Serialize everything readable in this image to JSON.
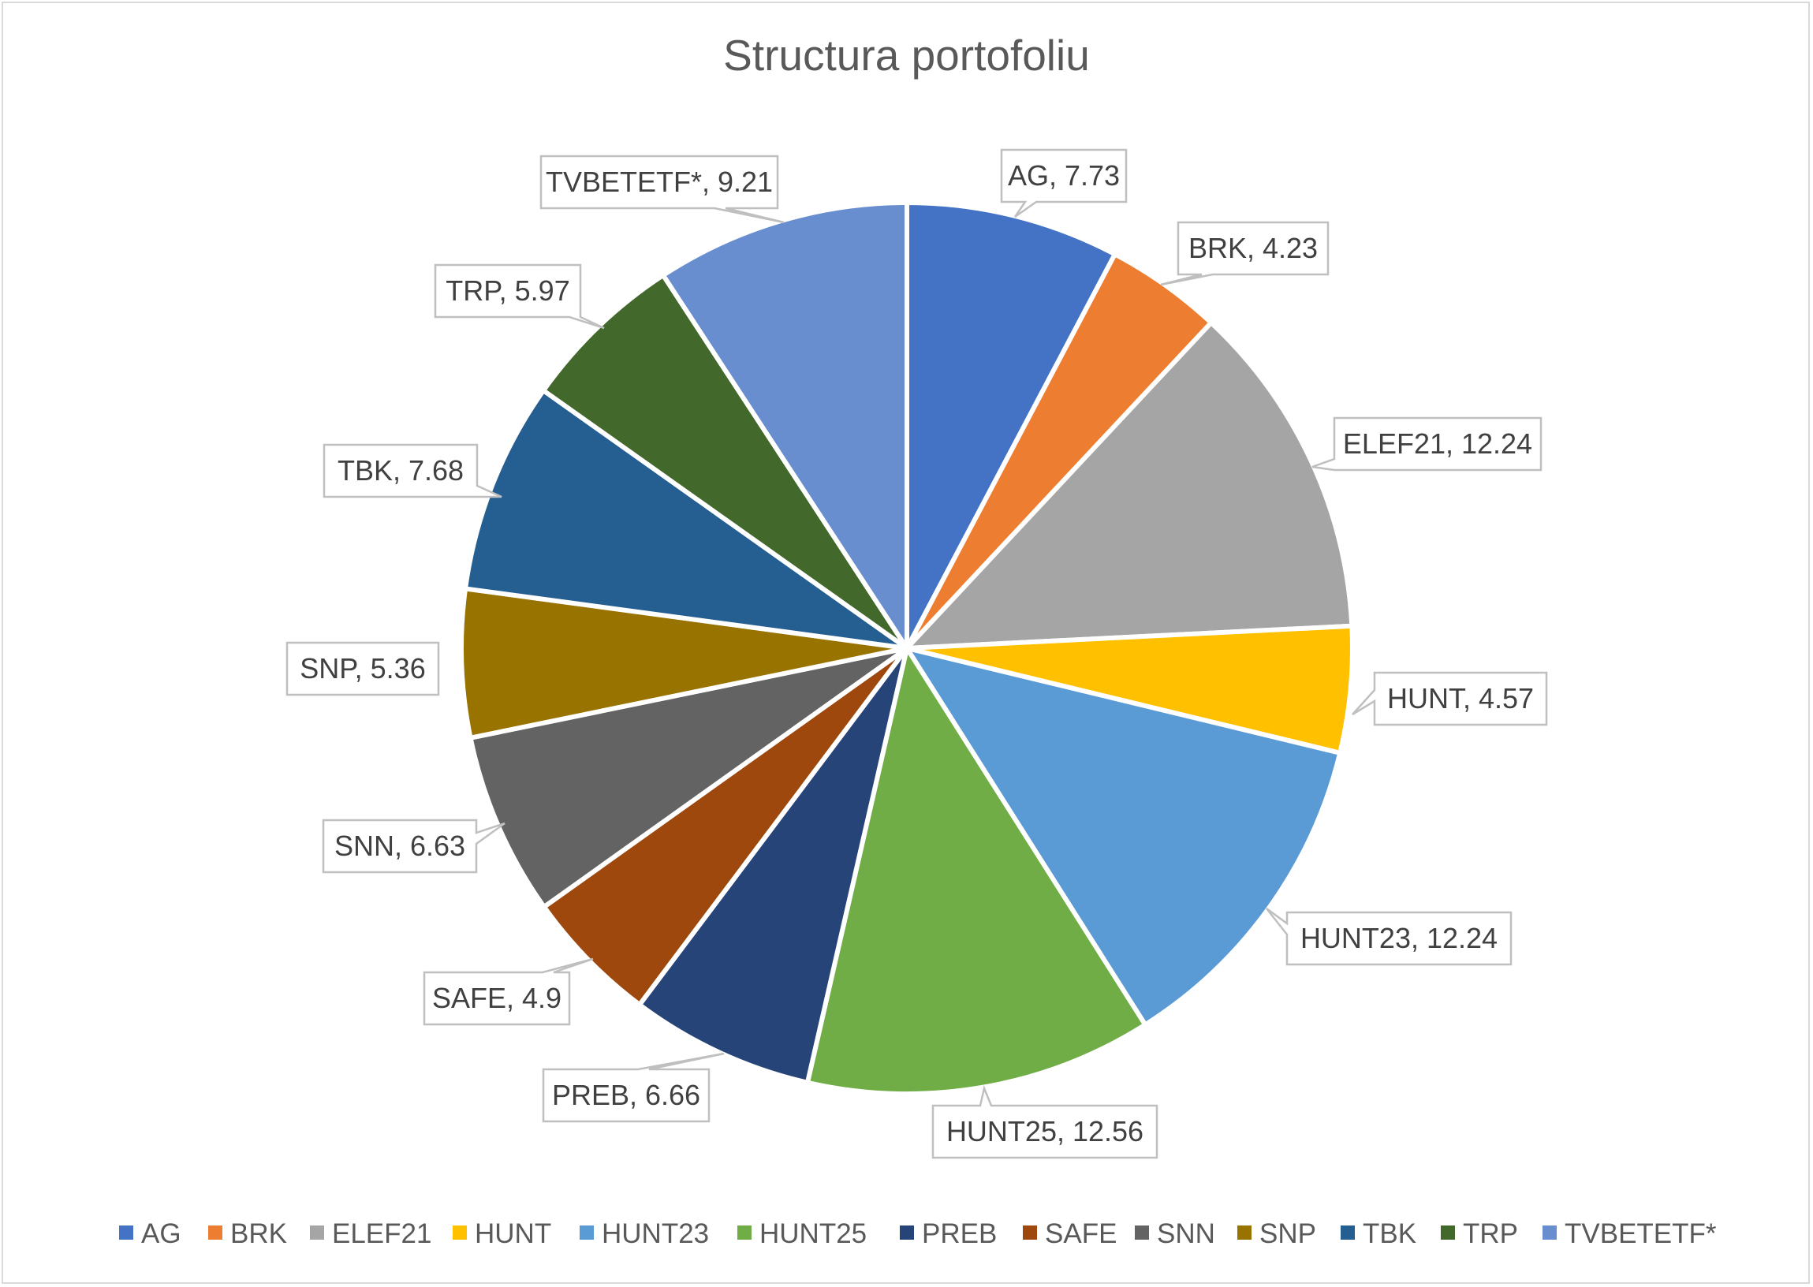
{
  "chart_data": {
    "type": "pie",
    "title": "Structura portofoliu",
    "categories": [
      "AG",
      "BRK",
      "ELEF21",
      "HUNT",
      "HUNT23",
      "HUNT25",
      "PREB",
      "SAFE",
      "SNN",
      "SNP",
      "TBK",
      "TRP",
      "TVBETETF*"
    ],
    "values": [
      7.73,
      4.23,
      12.24,
      4.57,
      12.24,
      12.56,
      6.66,
      4.9,
      6.63,
      5.36,
      7.68,
      5.97,
      9.21
    ],
    "data_labels": [
      "AG, 7.73",
      "BRK, 4.23",
      "ELEF21, 12.24",
      "HUNT, 4.57",
      "HUNT23, 12.24",
      "HUNT25, 12.56",
      "PREB, 6.66",
      "SAFE, 4.9",
      "SNN, 6.63",
      "SNP, 5.36",
      "TBK, 7.68",
      "TRP, 5.97",
      "TVBETETF*, 9.21"
    ],
    "colors": [
      "#4472C4",
      "#ED7D31",
      "#A5A5A5",
      "#FFC000",
      "#5B9BD5",
      "#70AD47",
      "#264478",
      "#9E480E",
      "#636363",
      "#997300",
      "#255E91",
      "#43682B",
      "#698ED0"
    ],
    "legend_position": "bottom",
    "start_angle": "12 o'clock, clockwise"
  }
}
